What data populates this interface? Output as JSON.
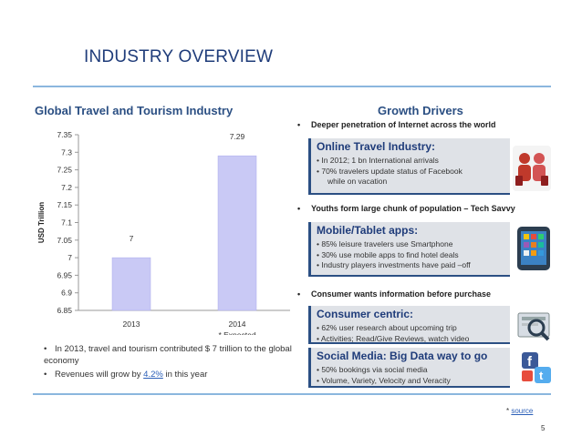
{
  "header": {
    "title": "INDUSTRY OVERVIEW"
  },
  "left": {
    "heading": "Global Travel and Tourism Industry",
    "bullets": [
      "In 2013, travel and tourism contributed  $ 7 trillion to the global economy",
      "Revenues will grow by ",
      "4.2%",
      " in this year"
    ],
    "expected_note": "* Expected"
  },
  "chart_data": {
    "type": "bar",
    "categories": [
      "2013",
      "2014"
    ],
    "values": [
      7,
      7.29
    ],
    "data_labels": [
      "7",
      "7.29"
    ],
    "ylabel": "USD Trillion",
    "ylim": [
      6.85,
      7.35
    ],
    "yticks": [
      "6.85",
      "6.9",
      "6.95",
      "7",
      "7.05",
      "7.1",
      "7.15",
      "7.2",
      "7.25",
      "7.3",
      "7.35"
    ],
    "grid": false,
    "bar_color": "#c9c9f5"
  },
  "right": {
    "heading": "Growth Drivers",
    "drivers": [
      "Deeper penetration of Internet across the world",
      "Youths form large chunk of population – Tech Savvy",
      "Consumer wants information before purchase"
    ],
    "boxes": {
      "online": {
        "title": "Online Travel Industry:",
        "lines": [
          "• In 2012; 1 bn International arrivals",
          "• 70% travelers  update status of Facebook",
          "while on vacation"
        ]
      },
      "mobile": {
        "title": "Mobile/Tablet apps:",
        "lines": [
          "• 85% leisure travelers use Smartphone",
          "• 30% use mobile apps to find hotel deals",
          "• Industry players investments have paid –off"
        ]
      },
      "consumer": {
        "title": "Consumer centric:",
        "lines": [
          "• 62% user research about upcoming trip",
          "• Activities; Read/Give Reviews, watch video"
        ]
      },
      "social": {
        "title": "Social Media: Big Data way to go",
        "lines": [
          "• 50% bookings via social media",
          "• Volume, Variety, Velocity and Veracity"
        ]
      }
    }
  },
  "footer": {
    "source_prefix": "* ",
    "source_link": "source",
    "page_number": "5"
  },
  "colors": {
    "accent": "#2b4f83",
    "rule": "#8bb7de",
    "box_bg": "#dfe2e7"
  },
  "icons": [
    "people-travel-icon",
    "mobile-apps-icon",
    "magnifier-research-icon",
    "social-media-icon"
  ]
}
